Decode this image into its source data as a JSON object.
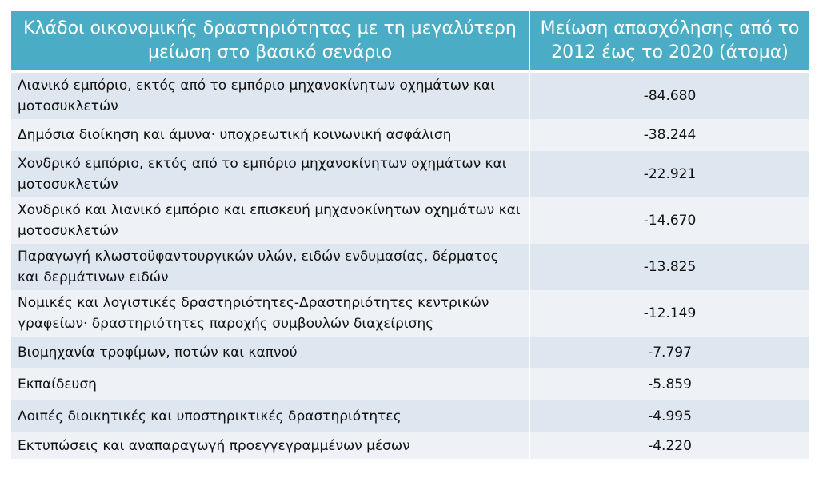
{
  "table": {
    "headers": [
      "Κλάδοι οικονομικής δραστηριότητας με τη μεγαλύτερη μείωση στο βασικό σενάριο",
      "Μείωση απασχόλησης από το 2012 έως το 2020 (άτομα)"
    ],
    "rows": [
      {
        "sector": "Λιανικό εμπόριο, εκτός από το εμπόριο μηχανοκίνητων οχημάτων και μοτοσυκλετών",
        "value": "-84.680"
      },
      {
        "sector": "Δημόσια διοίκηση και άμυνα· υποχρεωτική κοινωνική ασφάλιση",
        "value": "-38.244"
      },
      {
        "sector": "Χονδρικό εμπόριο, εκτός από το εμπόριο μηχανοκίνητων οχημάτων και μοτοσυκλετών",
        "value": "-22.921"
      },
      {
        "sector": "Χονδρικό και λιανικό εμπόριο και επισκευή μηχανοκίνητων οχημάτων και μοτοσυκλετών",
        "value": "-14.670"
      },
      {
        "sector": "Παραγωγή κλωστοϋφαντουργικών υλών, ειδών ενδυμασίας, δέρματος και δερμάτινων ειδών",
        "value": "-13.825"
      },
      {
        "sector": "Νομικές και λογιστικές δραστηριότητες-Δραστηριότητες κεντρικών γραφείων· δραστηριότητες παροχής συμβουλών διαχείρισης",
        "value": "-12.149"
      },
      {
        "sector": "Βιομηχανία τροφίμων, ποτών και καπνού",
        "value": "-7.797"
      },
      {
        "sector": "Εκπαίδευση",
        "value": "-5.859"
      },
      {
        "sector": "Λοιπές διοικητικές και υποστηρικτικές δραστηριότητες",
        "value": "-4.995"
      },
      {
        "sector": "Εκτυπώσεις και αναπαραγωγή προεγγεγραμμένων μέσων",
        "value": "-4.220"
      }
    ]
  }
}
